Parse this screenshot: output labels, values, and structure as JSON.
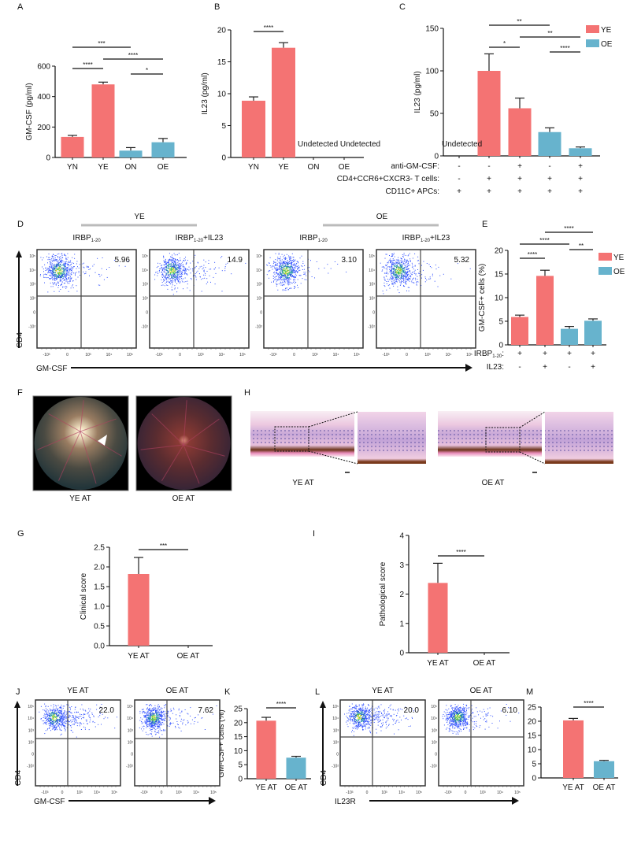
{
  "colors": {
    "YE": "#f47373",
    "OE": "#67b3cd"
  },
  "panel_labels": {
    "A": "A",
    "B": "B",
    "C": "C",
    "D": "D",
    "E": "E",
    "F": "F",
    "G": "G",
    "H": "H",
    "I": "I",
    "J": "J",
    "K": "K",
    "L": "L",
    "M": "M"
  },
  "chart_data": [
    {
      "panel": "A",
      "type": "bar",
      "ylabel": "GM-CSF (pg/ml)",
      "categories": [
        "YN",
        "YE",
        "ON",
        "OE"
      ],
      "groups": [
        "YE",
        "YE",
        "OE",
        "OE"
      ],
      "values": [
        135,
        480,
        45,
        100
      ],
      "error_upper": [
        145,
        495,
        65,
        125
      ],
      "ylim": [
        0,
        600
      ],
      "yticks": [
        "0",
        "200",
        "400",
        "600"
      ],
      "ytick_values": [
        0,
        200,
        400,
        600
      ],
      "significance": [
        {
          "from": 0,
          "to": 2,
          "label": "***"
        },
        {
          "from": 1,
          "to": 3,
          "label": "****"
        },
        {
          "from": 0,
          "to": 1,
          "label": "****"
        },
        {
          "from": 2,
          "to": 3,
          "label": "*"
        }
      ]
    },
    {
      "panel": "B",
      "type": "bar",
      "ylabel": "IL23 (pg/ml)",
      "categories": [
        "YN",
        "YE",
        "ON",
        "OE"
      ],
      "groups": [
        "YE",
        "YE",
        "OE",
        "OE"
      ],
      "values": [
        8.9,
        17.2,
        null,
        null
      ],
      "error_upper": [
        9.5,
        18.0,
        null,
        null
      ],
      "ylim": [
        0,
        20
      ],
      "yticks": [
        "0",
        "5",
        "10",
        "15",
        "20"
      ],
      "ytick_values": [
        0,
        5,
        10,
        15,
        20
      ],
      "annotation": "Undetected Undetected",
      "significance": [
        {
          "from": 0,
          "to": 1,
          "label": "****"
        }
      ]
    },
    {
      "panel": "C",
      "type": "bar",
      "ylabel": "IL23 (pg/ml)",
      "categories": [
        "",
        "",
        "",
        "",
        ""
      ],
      "groups": [
        "YE",
        "YE",
        "YE",
        "OE",
        "OE"
      ],
      "values": [
        null,
        100,
        56,
        28,
        9
      ],
      "error_upper": [
        null,
        120,
        68,
        33,
        10.5
      ],
      "ylim": [
        0,
        150
      ],
      "yticks": [
        "0",
        "50",
        "100",
        "150"
      ],
      "ytick_values": [
        0,
        50,
        100,
        150
      ],
      "annotation": "Undetected",
      "legend": [
        "YE",
        "OE"
      ],
      "condition_rows": [
        {
          "label": "anti-GM-CSF:",
          "values": [
            "-",
            "-",
            "+",
            "-",
            "+"
          ]
        },
        {
          "label": "CD4+CCR6+CXCR3- T cells:",
          "values": [
            "-",
            "+",
            "+",
            "+",
            "+"
          ]
        },
        {
          "label": "CD11C+ APCs:",
          "values": [
            "+",
            "+",
            "+",
            "+",
            "+"
          ]
        }
      ],
      "significance": [
        {
          "from": 1,
          "to": 3,
          "label": "**"
        },
        {
          "from": 2,
          "to": 4,
          "label": "**"
        },
        {
          "from": 1,
          "to": 2,
          "label": "*"
        },
        {
          "from": 3,
          "to": 4,
          "label": "****"
        }
      ]
    },
    {
      "panel": "E",
      "type": "bar",
      "ylabel": "GM-CSF+ cells (%)",
      "categories": [
        "",
        "",
        "",
        ""
      ],
      "groups": [
        "YE",
        "YE",
        "OE",
        "OE"
      ],
      "values": [
        5.9,
        14.6,
        3.4,
        5.1
      ],
      "error_upper": [
        6.3,
        15.8,
        3.9,
        5.5
      ],
      "ylim": [
        0,
        20
      ],
      "yticks": [
        "0",
        "5",
        "10",
        "15",
        "20"
      ],
      "ytick_values": [
        0,
        5,
        10,
        15,
        20
      ],
      "legend": [
        "YE",
        "OE"
      ],
      "condition_rows": [
        {
          "label": "IRBP",
          "sub": "1-20",
          "tail": ":",
          "values": [
            "+",
            "+",
            "+",
            "+"
          ]
        },
        {
          "label": "IL23:",
          "values": [
            "-",
            "+",
            "-",
            "+"
          ]
        }
      ],
      "significance": [
        {
          "from": 0,
          "to": 1,
          "label": "****"
        },
        {
          "from": 0,
          "to": 2,
          "label": "****"
        },
        {
          "from": 2,
          "to": 3,
          "label": "**"
        },
        {
          "from": 1,
          "to": 3,
          "label": "****"
        }
      ]
    },
    {
      "panel": "G",
      "type": "bar",
      "ylabel": "Clinical score",
      "categories": [
        "YE AT",
        "OE AT"
      ],
      "groups": [
        "YE",
        "OE"
      ],
      "values": [
        1.82,
        0
      ],
      "error_upper": [
        2.24,
        null
      ],
      "ylim": [
        0,
        2.5
      ],
      "yticks": [
        "0.0",
        "0.5",
        "1.0",
        "1.5",
        "2.0",
        "2.5"
      ],
      "ytick_values": [
        0,
        0.5,
        1,
        1.5,
        2,
        2.5
      ],
      "significance": [
        {
          "from": 0,
          "to": 1,
          "label": "***"
        }
      ]
    },
    {
      "panel": "I",
      "type": "bar",
      "ylabel": "Pathological score",
      "categories": [
        "YE AT",
        "OE AT"
      ],
      "groups": [
        "YE",
        "OE"
      ],
      "values": [
        2.38,
        0
      ],
      "error_upper": [
        3.05,
        null
      ],
      "ylim": [
        0,
        4
      ],
      "yticks": [
        "0",
        "1",
        "2",
        "3",
        "4"
      ],
      "ytick_values": [
        0,
        1,
        2,
        3,
        4
      ],
      "significance": [
        {
          "from": 0,
          "to": 1,
          "label": "****"
        }
      ]
    },
    {
      "panel": "K",
      "type": "bar",
      "ylabel": "GM-CSF+ cells (%)",
      "categories": [
        "YE AT",
        "OE AT"
      ],
      "groups": [
        "YE",
        "OE"
      ],
      "values": [
        20.7,
        7.5
      ],
      "error_upper": [
        21.9,
        8.0
      ],
      "ylim": [
        0,
        25
      ],
      "yticks": [
        "0",
        "5",
        "10",
        "15",
        "20",
        "25"
      ],
      "ytick_values": [
        0,
        5,
        10,
        15,
        20,
        25
      ],
      "significance": [
        {
          "from": 0,
          "to": 1,
          "label": "****"
        }
      ]
    },
    {
      "panel": "M",
      "type": "bar",
      "ylabel": "IL23R+ cells (%)",
      "categories": [
        "YE AT",
        "OE AT"
      ],
      "groups": [
        "YE",
        "OE"
      ],
      "values": [
        20.3,
        5.9
      ],
      "error_upper": [
        21.0,
        6.2
      ],
      "ylim": [
        0,
        25
      ],
      "yticks": [
        "0",
        "5",
        "10",
        "15",
        "20",
        "25"
      ],
      "ytick_values": [
        0,
        5,
        10,
        15,
        20,
        25
      ],
      "significance": [
        {
          "from": 0,
          "to": 1,
          "label": "****"
        }
      ]
    }
  ],
  "flow_D": {
    "group_headers": [
      "YE",
      "OE"
    ],
    "plots": [
      {
        "label": "IRBP",
        "sub": "1-20",
        "suffix": "",
        "value": "5.96"
      },
      {
        "label": "IRBP",
        "sub": "1-20",
        "suffix": "+IL23",
        "value": "14.9"
      },
      {
        "label": "IRBP",
        "sub": "1-20",
        "suffix": "",
        "value": "3.10"
      },
      {
        "label": "IRBP",
        "sub": "1-20",
        "suffix": "+IL23",
        "value": "5.32"
      }
    ],
    "y_axis": "CD4",
    "x_axis": "GM-CSF"
  },
  "flow_J": {
    "plots": [
      {
        "label": "YE AT",
        "value": "22.0"
      },
      {
        "label": "OE AT",
        "value": "7.62"
      }
    ],
    "y_axis": "CD4",
    "x_axis": "GM-CSF"
  },
  "flow_L": {
    "plots": [
      {
        "label": "YE AT",
        "value": "20.0"
      },
      {
        "label": "OE AT",
        "value": "6.10"
      }
    ],
    "y_axis": "CD4",
    "x_axis": "IL23R"
  },
  "flow_ticks": {
    "y": [
      "10⁵",
      "10⁴",
      "10³",
      "10²",
      "0",
      "-10²"
    ],
    "x": [
      "-10³",
      "0",
      "10³",
      "10⁴",
      "10⁵"
    ]
  },
  "fundus": {
    "labels": [
      "YE AT",
      "OE AT"
    ]
  },
  "histology": {
    "labels": [
      "YE AT",
      "OE AT"
    ]
  }
}
